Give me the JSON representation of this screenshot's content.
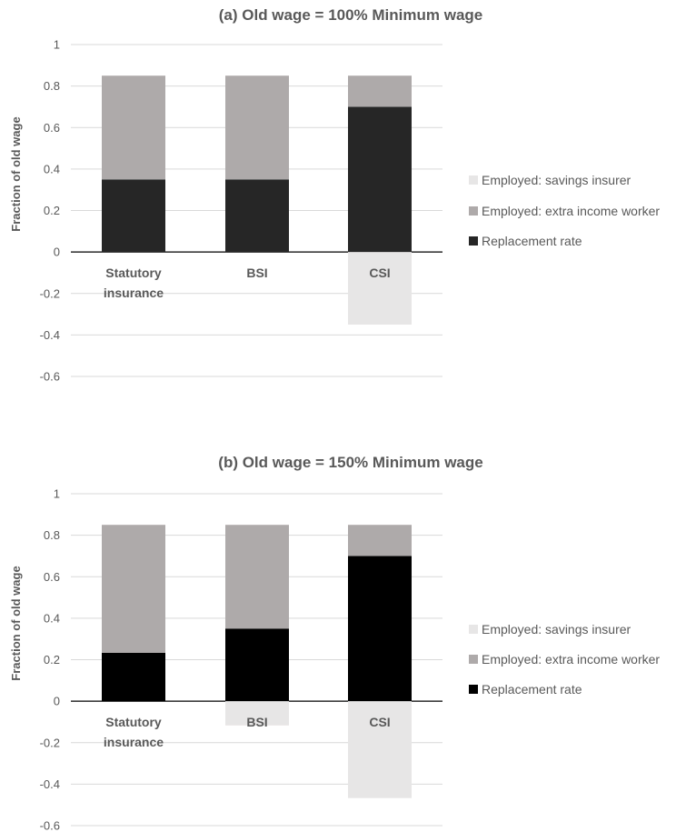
{
  "chart_data": [
    {
      "type": "bar",
      "stacked": true,
      "title": "(a) Old wage = 100% Minimum wage",
      "ylabel": "Fraction of old wage",
      "xlabel": "",
      "categories": [
        [
          "Statutory",
          "insurance"
        ],
        [
          "BSI"
        ],
        [
          "CSI"
        ]
      ],
      "ylim": [
        -0.6,
        1
      ],
      "yticks": [
        1,
        0.8,
        0.6,
        0.4,
        0.2,
        0,
        -0.2,
        -0.4,
        -0.6
      ],
      "ytick_labels": [
        "1",
        "0.8",
        "0.6",
        "0.4",
        "0.2",
        "0",
        "-0.2",
        "-0.4",
        "-0.6"
      ],
      "grid": true,
      "legend_position": "right",
      "series": [
        {
          "name": "Replacement rate",
          "color": "#262626",
          "values": [
            0.35,
            0.35,
            0.7
          ]
        },
        {
          "name": "Employed: extra income worker",
          "color": "#aeaaaa",
          "values": [
            0.5,
            0.5,
            0.15
          ]
        },
        {
          "name": "Employed: savings insurer",
          "color": "#e7e6e6",
          "values": [
            0,
            0,
            -0.35
          ]
        }
      ]
    },
    {
      "type": "bar",
      "stacked": true,
      "title": "(b) Old wage = 150% Minimum wage",
      "ylabel": "Fraction of old wage",
      "xlabel": "",
      "categories": [
        [
          "Statutory",
          "insurance"
        ],
        [
          "BSI"
        ],
        [
          "CSI"
        ]
      ],
      "ylim": [
        -0.6,
        1
      ],
      "yticks": [
        1,
        0.8,
        0.6,
        0.4,
        0.2,
        0,
        -0.2,
        -0.4,
        -0.6
      ],
      "ytick_labels": [
        "1",
        "0.8",
        "0.6",
        "0.4",
        "0.2",
        "0",
        "-0.2",
        "-0.4",
        "-0.6"
      ],
      "grid": true,
      "legend_position": "right",
      "series": [
        {
          "name": "Replacement rate",
          "color": "#000000",
          "values": [
            0.233,
            0.35,
            0.7
          ]
        },
        {
          "name": "Employed: extra income worker",
          "color": "#aeaaaa",
          "values": [
            0.617,
            0.5,
            0.15
          ]
        },
        {
          "name": "Employed: savings insurer",
          "color": "#e7e6e6",
          "values": [
            0,
            -0.117,
            -0.467
          ]
        }
      ]
    }
  ]
}
